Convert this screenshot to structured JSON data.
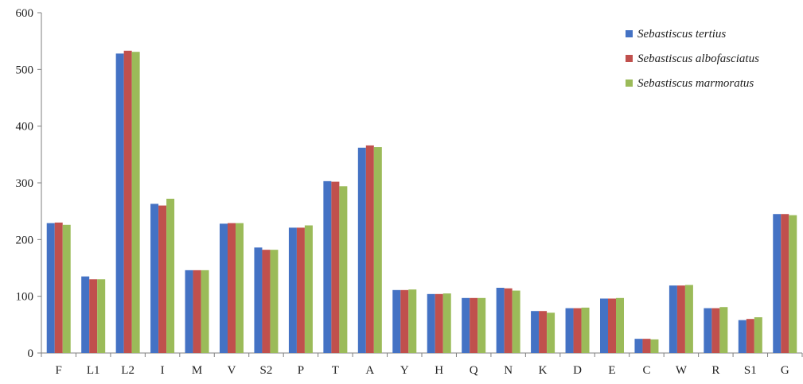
{
  "chart_data": {
    "type": "bar",
    "title": "",
    "xlabel": "",
    "ylabel": "",
    "ylim": [
      0,
      600
    ],
    "yticks": [
      0,
      100,
      200,
      300,
      400,
      500,
      600
    ],
    "grid": false,
    "legend_position": "top-right",
    "categories": [
      "F",
      "L1",
      "L2",
      "I",
      "M",
      "V",
      "S2",
      "P",
      "T",
      "A",
      "Y",
      "H",
      "Q",
      "N",
      "K",
      "D",
      "E",
      "C",
      "W",
      "R",
      "S1",
      "G"
    ],
    "series": [
      {
        "name": "Sebastiscus tertius",
        "color": "#4472C4",
        "values": [
          229,
          135,
          528,
          263,
          146,
          228,
          186,
          221,
          303,
          362,
          111,
          104,
          97,
          115,
          74,
          79,
          96,
          25,
          119,
          79,
          58,
          245
        ]
      },
      {
        "name": "Sebastiscus albofasciatus",
        "color": "#C0504D",
        "values": [
          230,
          130,
          533,
          260,
          146,
          229,
          182,
          221,
          302,
          366,
          111,
          104,
          97,
          114,
          74,
          79,
          96,
          25,
          119,
          79,
          60,
          245
        ]
      },
      {
        "name": "Sebastiscus marmoratus",
        "color": "#9BBB59",
        "values": [
          226,
          130,
          531,
          272,
          146,
          229,
          182,
          225,
          294,
          363,
          112,
          105,
          97,
          110,
          71,
          80,
          97,
          24,
          120,
          81,
          63,
          243
        ]
      }
    ]
  }
}
